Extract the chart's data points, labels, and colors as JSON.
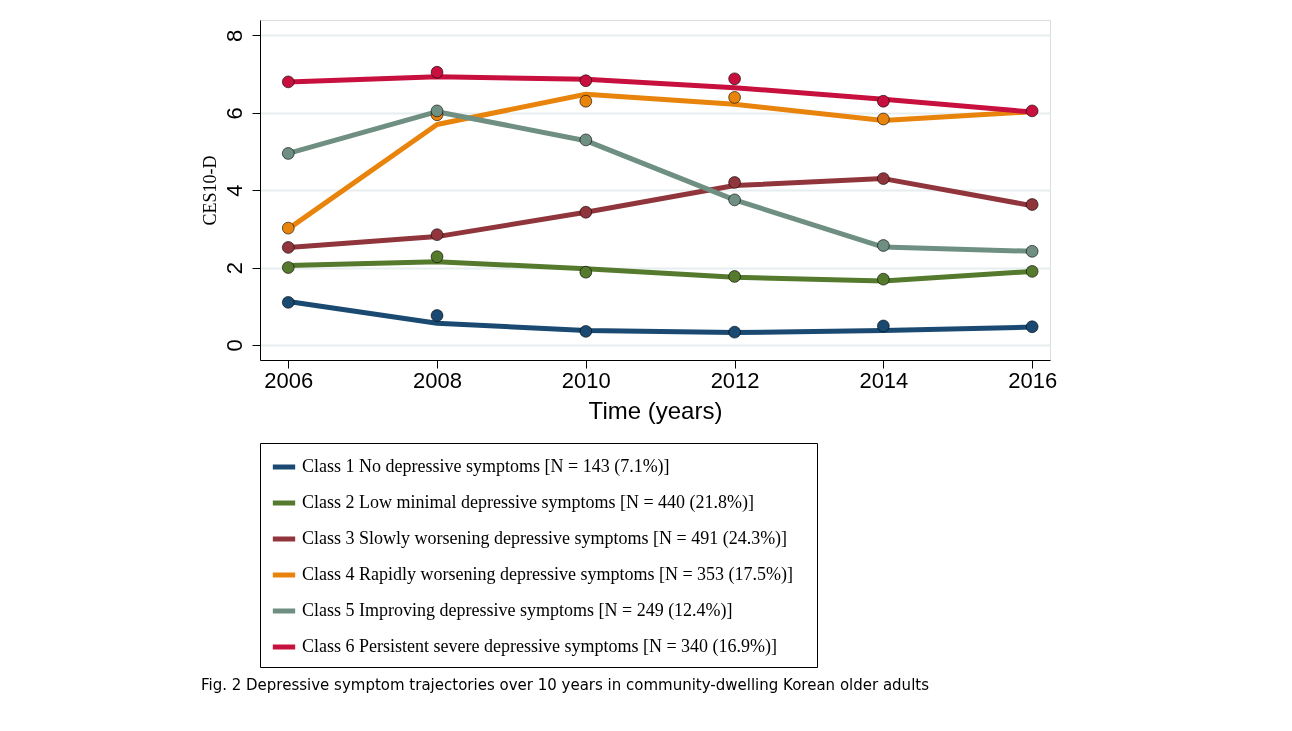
{
  "chart_data": {
    "type": "line",
    "xlabel": "Time (years)",
    "ylabel": "CES10-D",
    "x": [
      2006,
      2008,
      2010,
      2012,
      2014,
      2016
    ],
    "xlim": [
      2005.62,
      2016.24
    ],
    "xticks": [
      2006,
      2008,
      2010,
      2012,
      2014,
      2016
    ],
    "ylim": [
      -0.39,
      8.4
    ],
    "yticks": [
      0,
      2,
      4,
      6,
      8
    ],
    "grid": "y",
    "legend": "bottom",
    "line_style": "solid",
    "marker": "none",
    "annotations": [
      "Fig. 2  Depressive symptom trajectories over 10 years in community-dwelling Korean older adults"
    ],
    "series": [
      {
        "name": "Class 1    No depressive symptoms [N = 143 (7.1%)]",
        "color": "#1a4a72",
        "values": [
          1.12,
          0.56,
          0.37,
          0.32,
          0.37,
          0.46
        ]
      },
      {
        "name": "Class 2    Low minimal depressive symptoms [N = 440 (21.8%)]",
        "color": "#557a2e",
        "values": [
          2.05,
          2.15,
          1.97,
          1.75,
          1.65,
          1.9
        ]
      },
      {
        "name": "Class 3    Slowly worsening depressive symptoms [N = 491 (24.3%)]",
        "color": "#90353b",
        "values": [
          2.52,
          2.8,
          3.43,
          4.12,
          4.3,
          3.6
        ]
      },
      {
        "name": "Class 4    Rapidly worsening depressive symptoms [N = 353 (17.5%)]",
        "color": "#e8830c",
        "values": [
          3.0,
          5.7,
          6.48,
          6.22,
          5.8,
          6.03
        ]
      },
      {
        "name": "Class 5    Improving depressive symptoms [N = 249 (12.4%)]",
        "color": "#6e8f81",
        "values": [
          4.95,
          6.03,
          5.28,
          3.75,
          2.53,
          2.42
        ]
      },
      {
        "name": "Class 6    Persistent severe depressive symptoms [N = 340 (16.9%)]",
        "color": "#c8103e",
        "values": [
          6.8,
          6.93,
          6.87,
          6.65,
          6.35,
          6.02
        ]
      },
      {
        "type": "scatter",
        "marker": "circle",
        "color": "#1a4a72",
        "values": [
          1.1,
          0.76,
          0.35,
          0.33,
          0.49,
          0.47
        ]
      },
      {
        "type": "scatter",
        "marker": "circle",
        "color": "#557a2e",
        "values": [
          2.0,
          2.28,
          1.88,
          1.77,
          1.7,
          1.9
        ]
      },
      {
        "type": "scatter",
        "marker": "circle",
        "color": "#90353b",
        "values": [
          2.52,
          2.85,
          3.43,
          4.2,
          4.3,
          3.63
        ]
      },
      {
        "type": "scatter",
        "marker": "circle",
        "color": "#e8830c",
        "values": [
          3.02,
          5.95,
          6.3,
          6.4,
          5.84,
          null
        ]
      },
      {
        "type": "scatter",
        "marker": "circle",
        "color": "#6e8f81",
        "values": [
          4.95,
          6.05,
          5.3,
          3.75,
          2.57,
          2.42
        ]
      },
      {
        "type": "scatter",
        "marker": "circle",
        "color": "#c8103e",
        "values": [
          6.8,
          7.05,
          6.83,
          6.88,
          6.3,
          6.05
        ]
      }
    ]
  }
}
